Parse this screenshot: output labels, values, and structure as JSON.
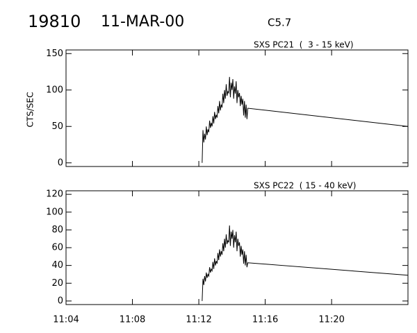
{
  "header": {
    "event": "19810",
    "date": "11-MAR-00",
    "class": "C5.7"
  },
  "chart_data": [
    {
      "type": "line",
      "title": "SXS PC21  (  3 - 15 keV)",
      "y_label": "CTS/SEC",
      "color": "#000000",
      "x": [
        672.2,
        672.25,
        672.3,
        672.35,
        672.4,
        672.45,
        672.5,
        672.55,
        672.6,
        672.65,
        672.7,
        672.75,
        672.8,
        672.85,
        672.9,
        672.95,
        673,
        673.05,
        673.1,
        673.15,
        673.2,
        673.25,
        673.3,
        673.35,
        673.4,
        673.45,
        673.5,
        673.55,
        673.6,
        673.65,
        673.7,
        673.75,
        673.8,
        673.85,
        673.9,
        673.95,
        674,
        674.05,
        674.1,
        674.15,
        674.2,
        674.25,
        674.3,
        674.35,
        674.4,
        674.45,
        674.5,
        674.55,
        674.6,
        674.65,
        674.7,
        674.75,
        674.8,
        674.85,
        674.9,
        674.95,
        684.6
      ],
      "values": [
        0,
        45,
        28,
        40,
        32,
        50,
        38,
        46,
        42,
        58,
        48,
        55,
        50,
        64,
        54,
        70,
        60,
        66,
        62,
        78,
        68,
        85,
        72,
        80,
        76,
        95,
        82,
        100,
        88,
        108,
        92,
        98,
        96,
        118,
        90,
        110,
        100,
        115,
        88,
        105,
        95,
        112,
        82,
        100,
        90,
        96,
        78,
        92,
        80,
        88,
        65,
        85,
        62,
        80,
        60,
        75,
        50
      ],
      "xlim": [
        664,
        684.6
      ],
      "ylim": [
        -5,
        155
      ],
      "yticks": [
        0,
        50,
        100,
        150
      ]
    },
    {
      "type": "line",
      "title": "SXS PC22  ( 15 - 40 keV)",
      "color": "#000000",
      "x": [
        672.2,
        672.25,
        672.3,
        672.35,
        672.4,
        672.45,
        672.5,
        672.55,
        672.6,
        672.65,
        672.7,
        672.75,
        672.8,
        672.85,
        672.9,
        672.95,
        673,
        673.05,
        673.1,
        673.15,
        673.2,
        673.25,
        673.3,
        673.35,
        673.4,
        673.45,
        673.5,
        673.55,
        673.6,
        673.65,
        673.7,
        673.75,
        673.8,
        673.85,
        673.9,
        673.95,
        674,
        674.05,
        674.1,
        674.15,
        674.2,
        674.25,
        674.3,
        674.35,
        674.4,
        674.45,
        674.5,
        674.55,
        674.6,
        674.65,
        674.7,
        674.75,
        674.8,
        674.85,
        674.9,
        674.95,
        684.6
      ],
      "values": [
        0,
        25,
        18,
        28,
        22,
        32,
        26,
        30,
        28,
        38,
        32,
        36,
        34,
        44,
        36,
        48,
        40,
        45,
        42,
        54,
        46,
        58,
        50,
        56,
        52,
        65,
        56,
        70,
        60,
        75,
        64,
        68,
        66,
        85,
        62,
        78,
        70,
        80,
        60,
        74,
        66,
        78,
        56,
        70,
        62,
        66,
        50,
        62,
        52,
        58,
        42,
        56,
        40,
        52,
        38,
        43,
        29
      ],
      "xlim": [
        664,
        684.6
      ],
      "ylim": [
        -4,
        124
      ],
      "yticks": [
        0,
        20,
        40,
        60,
        80,
        100,
        120
      ],
      "xticks": [
        {
          "value": 664,
          "label": "11:04"
        },
        {
          "value": 668,
          "label": "11:08"
        },
        {
          "value": 672,
          "label": "11:12"
        },
        {
          "value": 676,
          "label": "11:16"
        },
        {
          "value": 680,
          "label": "11:20"
        }
      ]
    }
  ]
}
